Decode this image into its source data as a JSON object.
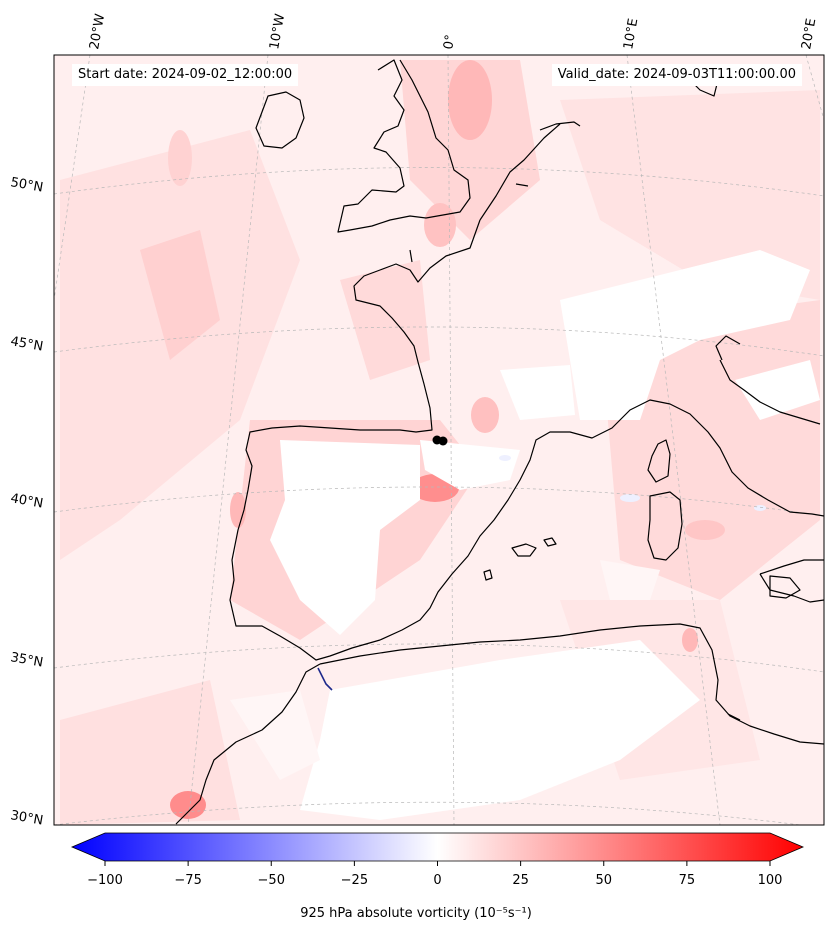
{
  "header": {
    "start_date": "Start date: 2024-09-02_12:00:00",
    "valid_date": "Valid_date: 2024-09-03T11:00:00.00"
  },
  "map": {
    "projection": "lambert-conformal",
    "region": "western-europe-iberia",
    "lon_labels": [
      "20°W",
      "10°W",
      "0°",
      "10°E",
      "20°E"
    ],
    "lat_labels": [
      "50°N",
      "45°N",
      "40°N",
      "35°N",
      "30°N"
    ],
    "gridlines": true,
    "field_colors": {
      "pale": "#ffe8e8",
      "light": "#ffd2d2",
      "medium": "#ffb4b4",
      "strong": "#ff8c8c",
      "blue": "#eef0ff",
      "ocean_base": "#ffefef"
    },
    "marker": {
      "type": "dot",
      "color": "#000000"
    }
  },
  "colorbar": {
    "ticks": [
      "−100",
      "−75",
      "−50",
      "−25",
      "0",
      "25",
      "50",
      "75",
      "100"
    ],
    "min": -100,
    "max": 100,
    "cmap": "bwr",
    "extend": "both",
    "label": "925 hPa absolute vorticity (10⁻⁵s⁻¹)"
  }
}
